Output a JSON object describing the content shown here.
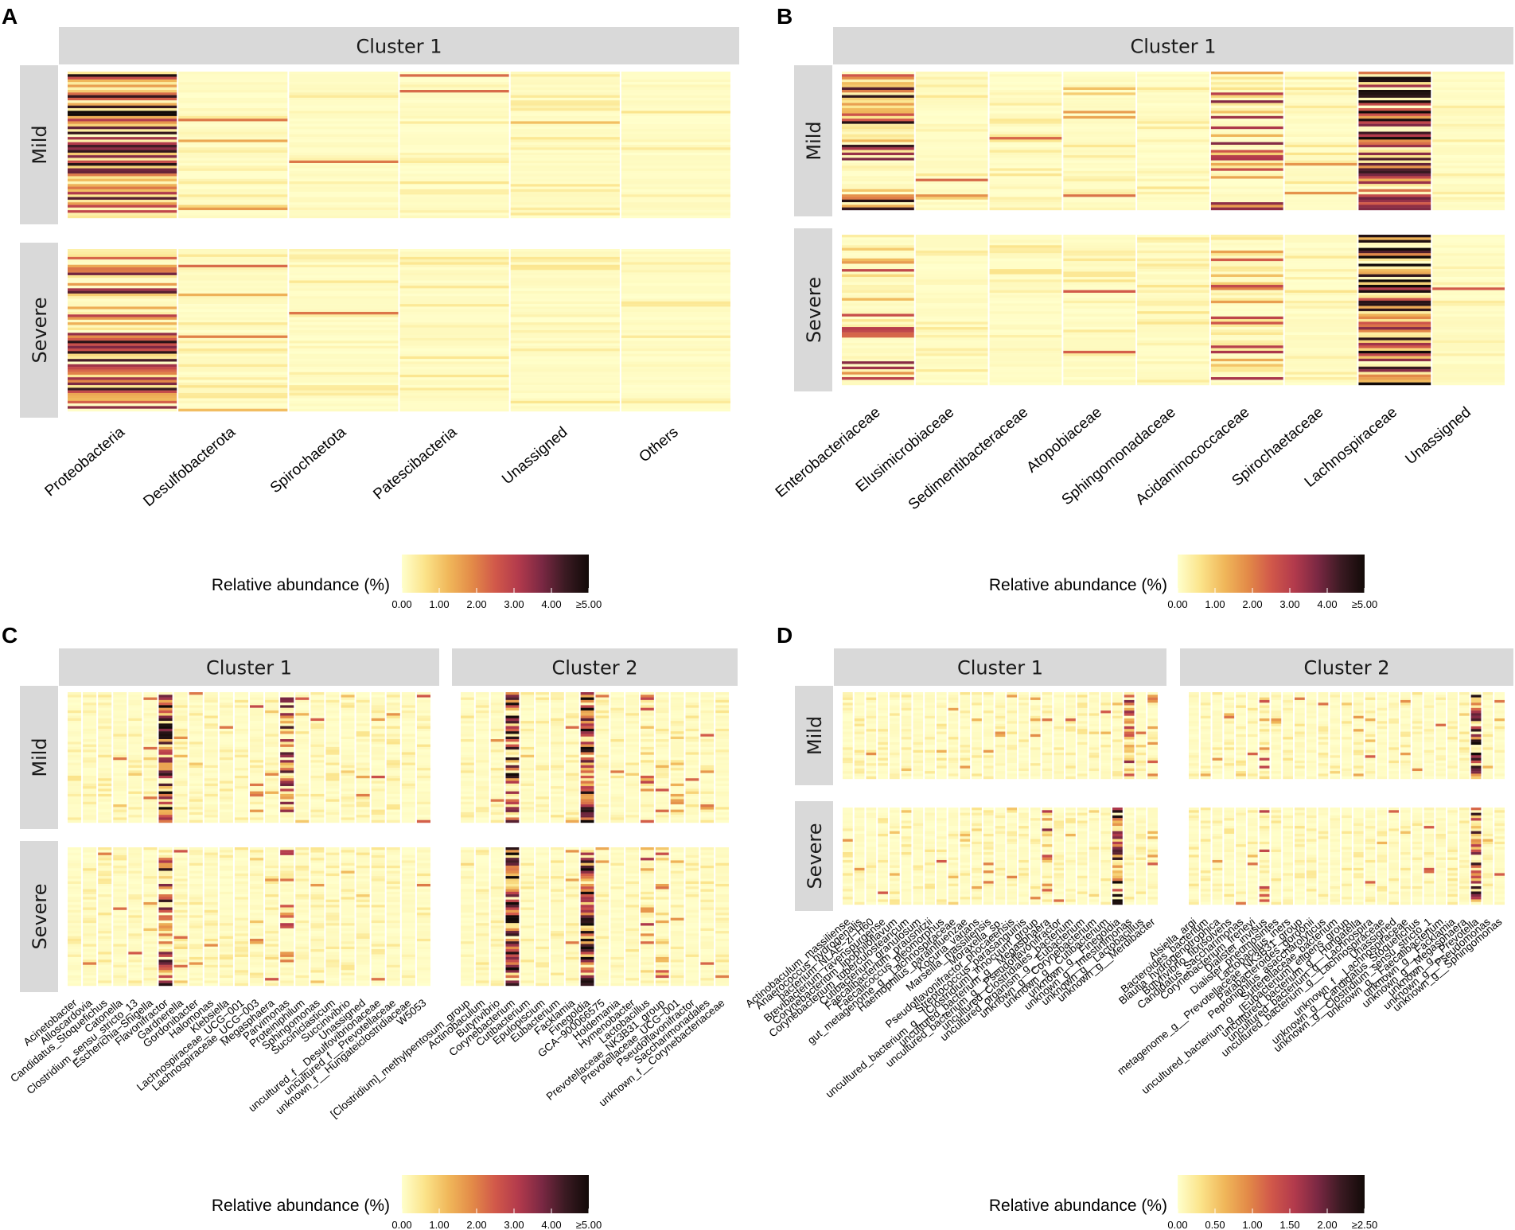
{
  "chart_data": [
    {
      "panel": "A",
      "type": "heatmap",
      "facet_cols": [
        "Cluster 1"
      ],
      "facet_rows": [
        "Mild",
        "Severe"
      ],
      "columns": [
        [
          "Proteobacteria",
          "Desulfobacterota",
          "Spirochaetota",
          "Patescibacteria",
          "Unassigned",
          "Others"
        ]
      ],
      "intensity": [
        [
          [
            0.75,
            0.06,
            0.01,
            0.01,
            0.02,
            0.005
          ]
        ],
        [
          [
            0.6,
            0.08,
            0.005,
            0.02,
            0.005,
            0.005
          ]
        ]
      ],
      "legend": {
        "title": "Relative abundance (%)",
        "ticks": [
          "0.00",
          "1.00",
          "2.00",
          "3.00",
          "4.00",
          "≥5.00"
        ],
        "range": [
          0,
          5
        ]
      }
    },
    {
      "panel": "B",
      "type": "heatmap",
      "facet_cols": [
        "Cluster 1"
      ],
      "facet_rows": [
        "Mild",
        "Severe"
      ],
      "columns": [
        [
          "Enterobacteriaceae",
          "Elusimicrobiaceae",
          "Sedimentibacteraceae",
          "Atopobiaceae",
          "Sphingomonadaceae",
          "Acidaminococcaceae",
          "Spirochaetaceae",
          "Lachnospiraceae",
          "Unassigned"
        ]
      ],
      "intensity": [
        [
          [
            0.6,
            0.02,
            0.02,
            0.1,
            0.02,
            0.35,
            0.01,
            0.8,
            0.01
          ]
        ],
        [
          [
            0.3,
            0.005,
            0.005,
            0.04,
            0.01,
            0.3,
            0.005,
            0.8,
            0.005
          ]
        ]
      ],
      "legend": {
        "title": "Relative abundance (%)",
        "ticks": [
          "0.00",
          "1.00",
          "2.00",
          "3.00",
          "4.00",
          "≥5.00"
        ],
        "range": [
          0,
          5
        ]
      }
    },
    {
      "panel": "C",
      "type": "heatmap",
      "facet_cols": [
        "Cluster 1",
        "Cluster 2"
      ],
      "facet_rows": [
        "Mild",
        "Severe"
      ],
      "columns": [
        [
          "Acinetobacter",
          "Alloscardovia",
          "Candidatus_Stoquefichus",
          "Catonella",
          "Clostridium_sensu_stricto_13",
          "Escherichia−Shigella",
          "Flavonifractor",
          "Gardnerella",
          "Gordonibacter",
          "Halomonas",
          "Klebsiella",
          "Lachnospiraceae_UCG−001",
          "Lachnospiraceae_UCG−003",
          "Megasphaera",
          "Parvimonas",
          "Proteiniphilum",
          "Sphingomonas",
          "Succiniclasticum",
          "Succinivibrio",
          "Unassigned",
          "uncultured_f__Desulfovibrionaceae",
          "uncultured_f__Prevotellaceae",
          "unknown_f__Hungateiclostridiaceae",
          "W5053"
        ],
        [
          "[Clostridium]_methylpentosum_group",
          "Actinobaculum",
          "Butyrivibrio",
          "Corynebacterium",
          "Cutibacterium",
          "Epulopiscium",
          "Eubacterium",
          "Facklamia",
          "Finegoldia",
          "GCA−900066575",
          "Holdemania",
          "Hymenobacter",
          "Lactobacillus",
          "Prevotellaceae_NK3B31_group",
          "Prevotellaceae_UCG−001",
          "Pseudoflavonifractor",
          "Saccharimonadales",
          "unknown_f__Corynebacteriaceae"
        ]
      ],
      "intensity": [
        [
          [
            0.02,
            0.02,
            0.02,
            0.03,
            0.04,
            0.05,
            0.8,
            0.05,
            0.03,
            0.02,
            0.03,
            0.02,
            0.15,
            0.03,
            0.5,
            0.08,
            0.03,
            0.02,
            0.03,
            0.05,
            0.08,
            0.04,
            0.03,
            0.03
          ],
          [
            0.02,
            0.02,
            0.02,
            0.7,
            0.03,
            0.02,
            0.02,
            0.03,
            0.8,
            0.02,
            0.03,
            0.02,
            0.15,
            0.1,
            0.03,
            0.02,
            0.03,
            0.02
          ]
        ],
        [
          [
            0.01,
            0.01,
            0.01,
            0.01,
            0.02,
            0.02,
            0.6,
            0.06,
            0.01,
            0.01,
            0.02,
            0.01,
            0.05,
            0.05,
            0.2,
            0.02,
            0.01,
            0.01,
            0.01,
            0.01,
            0.02,
            0.01,
            0.01,
            0.01
          ],
          [
            0.01,
            0.01,
            0.01,
            0.8,
            0.02,
            0.01,
            0.01,
            0.05,
            0.8,
            0.02,
            0.01,
            0.01,
            0.2,
            0.2,
            0.01,
            0.01,
            0.02,
            0.01
          ]
        ]
      ],
      "legend": {
        "title": "Relative abundance (%)",
        "ticks": [
          "0.00",
          "1.00",
          "2.00",
          "3.00",
          "4.00",
          "≥5.00"
        ],
        "range": [
          0,
          5
        ]
      }
    },
    {
      "panel": "D",
      "type": "heatmap",
      "facet_cols": [
        "Cluster 1",
        "Cluster 2"
      ],
      "facet_rows": [
        "Mild",
        "Severe"
      ],
      "columns": [
        [
          "Actinobaculum_massiliense",
          "Anaerococcus_hydrogenalis",
          "bacterium_NLAE−zl−H60",
          "Brevibacterium_ravenspurgense",
          "Corynebacterium_lipophiloflavum",
          "Corynebacterium_tuberculostearicum",
          "Cutibacterium_granulosum",
          "Faecalibacterium_prausnitzii",
          "Faecalicoccus_pleomorphus",
          "gut_metagenome_g__Lachnospiraceae",
          "Haemophilus_parainfluenzae",
          "Kocuria_varians",
          "Marseilla_massiliensis",
          "Moraxella_sp.",
          "Pseudoflavonifractor_phocaeensis",
          "Streptococcus_parasanguinis",
          "uncultured_bacterium_g__[Clostridium]_innocuum_group",
          "uncultured_bacterium_g__Megasphaera",
          "uncultured_bacterium_g__Pseudoflavonifractor",
          "uncultured_Clostridiales_bacterium",
          "uncultured_organism_g__Eubacterium",
          "unknown_g__Corynebacterium",
          "unknown_g__Cutibacterium",
          "unknown_g__Finegoldia",
          "unknown_g__Intestinimonas",
          "unknown_g__Lactobacillus",
          "unknown_g__Merdibacter"
        ],
        [
          "Alsiella_argi",
          "Bacteroides_bacterium",
          "Blautia_hydrogenotrophica",
          "Butyrivibrio_fibrisolvens",
          "Candidatus_Saccharimonas",
          "Corynebacterium_freneyi",
          "Dialister_invisus",
          "Dialister_pneumosintes",
          "Lactobacillus_iners",
          "metagenome_g__Prevotellaceae_NK3B31_group",
          "Parabacteroides_gordonii",
          "Peptoniphilus_asaccharolyticus",
          "Sutterellaceae_bacterium",
          "uncultured_bacterium_g__[Eubacterium]_eligens_group",
          "uncultured_bacterium_g__Hungatella",
          "uncultured_bacterium_g__Lachnospira",
          "uncultured_bacterium_g__Lachnospiraceae",
          "Unassigned",
          "unknown_f__Lachnospiraceae",
          "unknown_g__Candidatus_Stoquefichus",
          "unknown_g__Clostridium_sensu_stricto_1",
          "unknown_g__Faecalibacterium",
          "unknown_g__Facklamia",
          "unknown_g__Megasphaera",
          "unknown_g__Prevotella",
          "unknown_g__Pseudomonas",
          "unknown_g__Sphingomonas"
        ]
      ],
      "intensity": [
        [
          [
            0.02,
            0.02,
            0.02,
            0.02,
            0.03,
            0.02,
            0.02,
            0.02,
            0.03,
            0.02,
            0.02,
            0.02,
            0.02,
            0.03,
            0.02,
            0.02,
            0.03,
            0.02,
            0.02,
            0.03,
            0.02,
            0.02,
            0.05,
            0.02,
            0.7,
            0.03,
            0.15
          ],
          [
            0.02,
            0.02,
            0.02,
            0.02,
            0.03,
            0.02,
            0.25,
            0.03,
            0.02,
            0.02,
            0.02,
            0.02,
            0.05,
            0.02,
            0.02,
            0.04,
            0.02,
            0.02,
            0.05,
            0.02,
            0.02,
            0.02,
            0.02,
            0.03,
            0.7,
            0.05,
            0.03
          ]
        ],
        [
          [
            0.02,
            0.03,
            0.02,
            0.04,
            0.02,
            0.03,
            0.02,
            0.02,
            0.02,
            0.02,
            0.02,
            0.02,
            0.02,
            0.02,
            0.02,
            0.03,
            0.02,
            0.3,
            0.08,
            0.02,
            0.02,
            0.02,
            0.02,
            0.7,
            0.02,
            0.03,
            0.15
          ],
          [
            0.02,
            0.02,
            0.02,
            0.02,
            0.02,
            0.02,
            0.2,
            0.02,
            0.03,
            0.02,
            0.02,
            0.02,
            0.02,
            0.02,
            0.02,
            0.02,
            0.05,
            0.02,
            0.02,
            0.02,
            0.02,
            0.02,
            0.02,
            0.02,
            0.6,
            0.02,
            0.02
          ]
        ]
      ],
      "legend": {
        "title": "Relative abundance (%)",
        "ticks": [
          "0.00",
          "0.50",
          "1.00",
          "1.50",
          "2.00",
          "≥2.50"
        ],
        "range": [
          0,
          2.5
        ]
      }
    }
  ],
  "colors": {
    "strip": "#d9d9d9",
    "low": "#ffffcc",
    "scale": [
      "#ffffcc",
      "#fbe389",
      "#f0b75a",
      "#e38b48",
      "#d1584a",
      "#b23a4c",
      "#7a2843",
      "#3a1a22",
      "#120a08"
    ]
  }
}
